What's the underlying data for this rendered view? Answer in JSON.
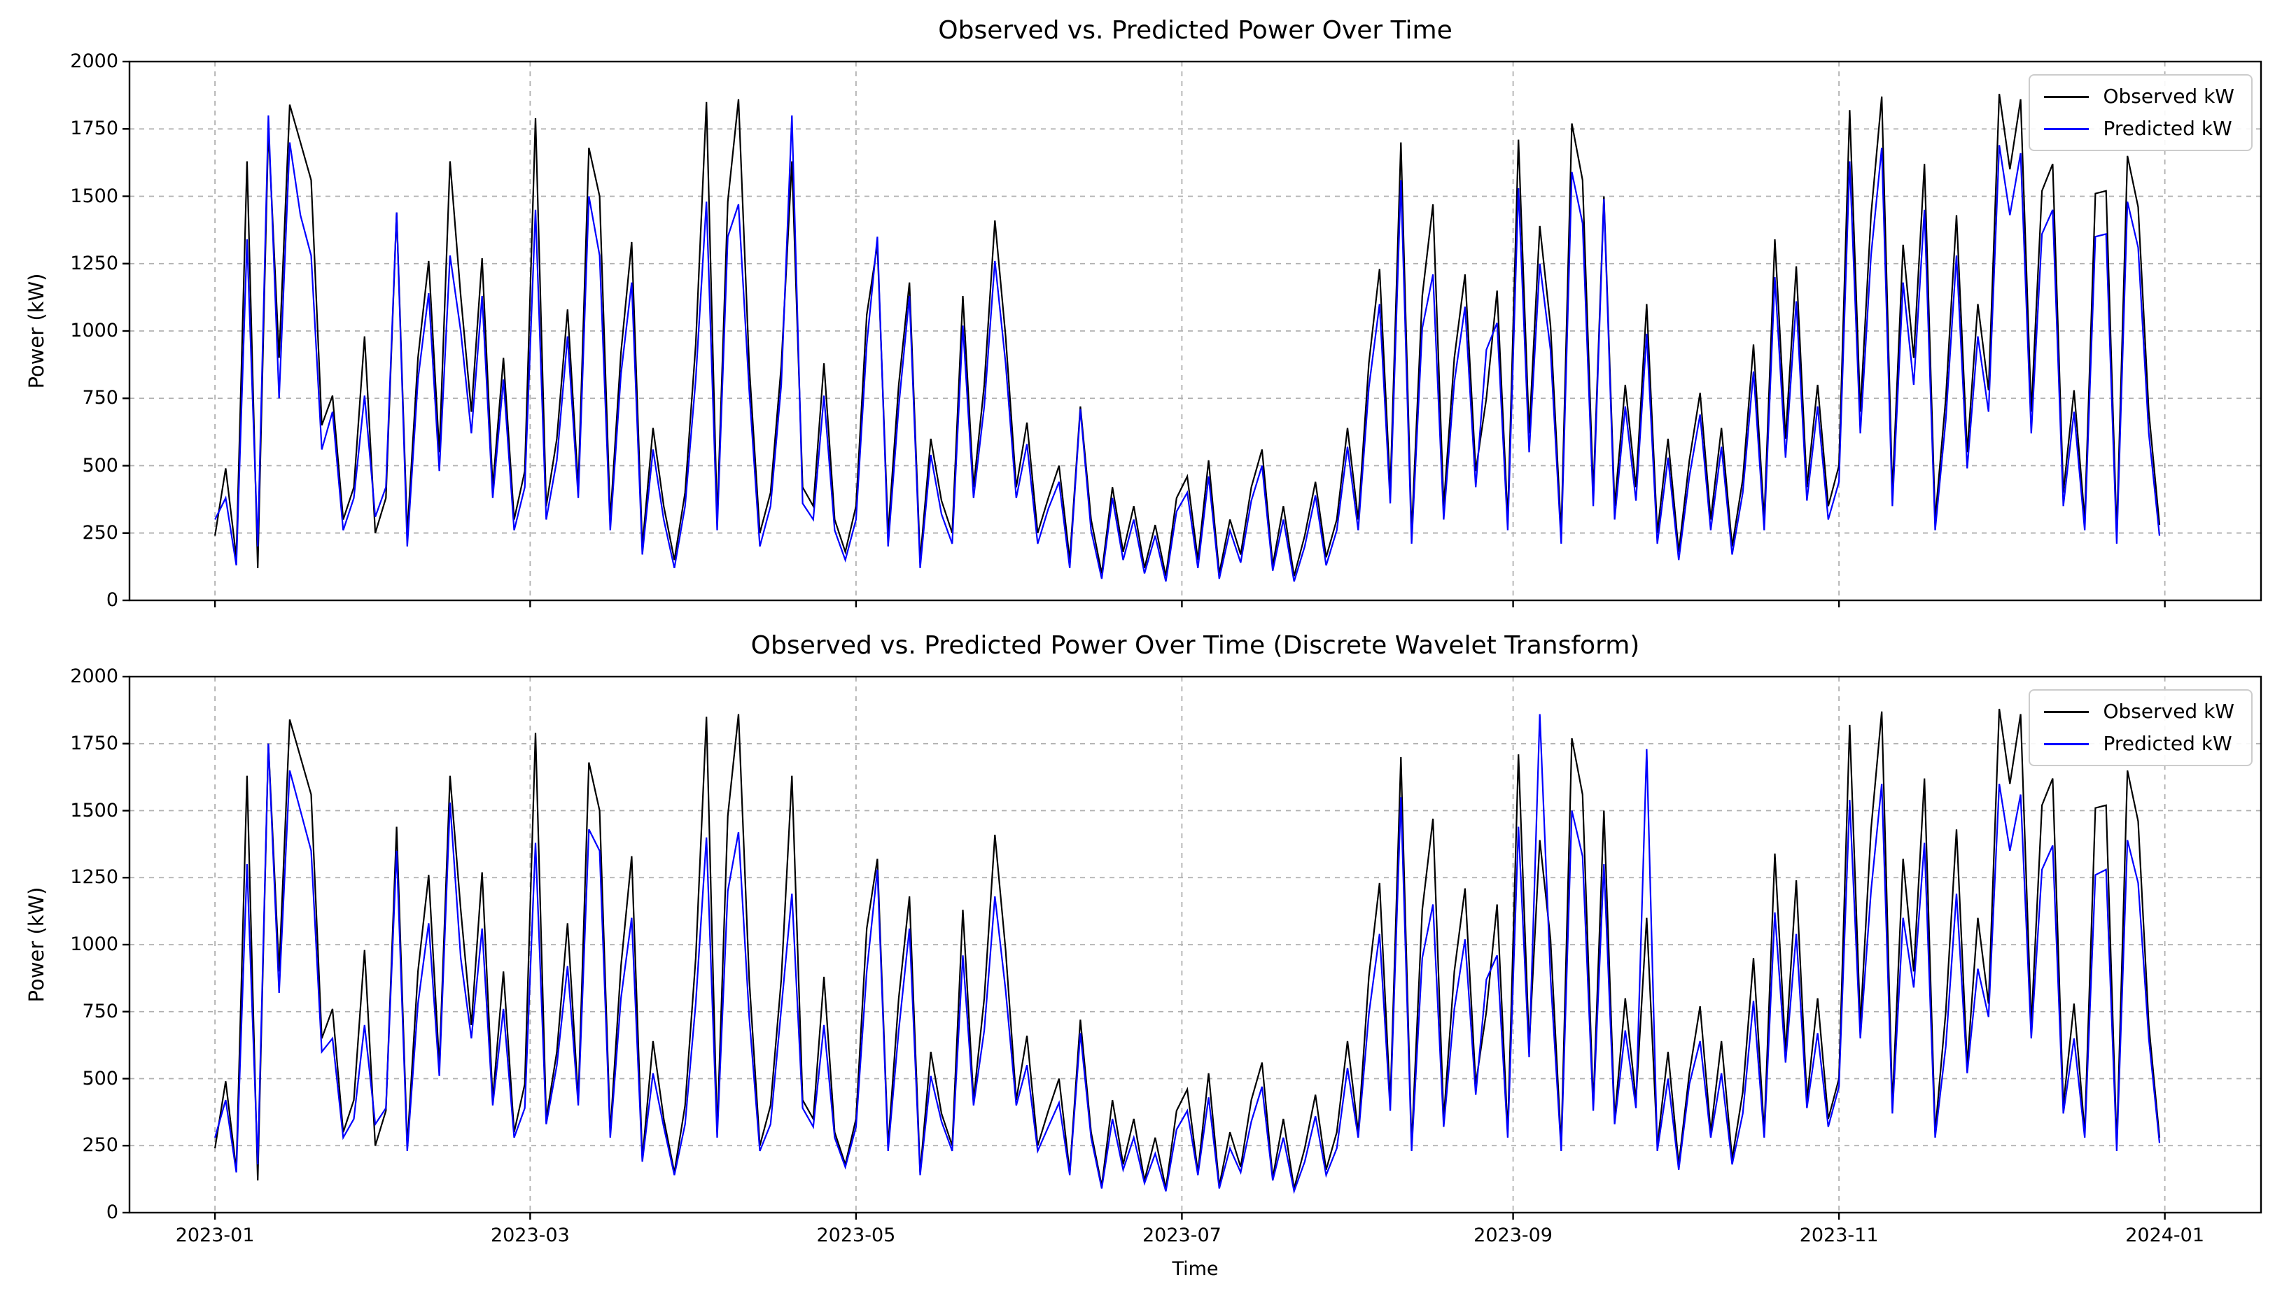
{
  "chart_data": {
    "type": "line",
    "x_start": "2023-01-01",
    "x_step_days": 2,
    "x_axis": {
      "xlim_days": [
        -16,
        383
      ],
      "tick_days": [
        0,
        59,
        120,
        181,
        243,
        304,
        365
      ],
      "tick_labels": [
        "2023-01",
        "2023-03",
        "2023-05",
        "2023-07",
        "2023-09",
        "2023-11",
        "2024-01"
      ]
    },
    "y_axis": {
      "ylim": [
        0,
        2000
      ],
      "ticks": [
        0,
        250,
        500,
        750,
        1000,
        1250,
        1500,
        1750,
        2000
      ]
    },
    "grid": true,
    "grid_style": "dashed",
    "colors": {
      "observed": "#000000",
      "predicted": "#0000ff",
      "grid": "#b0b0b0"
    },
    "values": {
      "observed": [
        240,
        490,
        160,
        1630,
        120,
        1750,
        900,
        1840,
        1700,
        1560,
        650,
        760,
        300,
        420,
        980,
        250,
        380,
        1440,
        250,
        900,
        1260,
        550,
        1630,
        1130,
        700,
        1270,
        420,
        900,
        300,
        480,
        1790,
        350,
        600,
        1080,
        420,
        1680,
        1500,
        300,
        920,
        1330,
        200,
        640,
        350,
        150,
        400,
        950,
        1850,
        300,
        1480,
        1860,
        870,
        250,
        400,
        870,
        1630,
        420,
        350,
        880,
        300,
        180,
        350,
        1060,
        1320,
        250,
        800,
        1180,
        150,
        600,
        370,
        250,
        1130,
        420,
        800,
        1410,
        980,
        420,
        660,
        250,
        380,
        500,
        150,
        720,
        300,
        100,
        420,
        180,
        350,
        120,
        280,
        90,
        380,
        460,
        150,
        520,
        100,
        300,
        170,
        420,
        560,
        130,
        350,
        90,
        240,
        440,
        160,
        300,
        640,
        300,
        880,
        1230,
        410,
        1700,
        250,
        1130,
        1470,
        350,
        900,
        1210,
        480,
        750,
        1150,
        300,
        1710,
        620,
        1390,
        1020,
        250,
        1770,
        1560,
        400,
        1500,
        350,
        800,
        420,
        1100,
        250,
        600,
        180,
        520,
        770,
        300,
        640,
        200,
        450,
        950,
        300,
        1340,
        600,
        1240,
        420,
        800,
        350,
        500,
        1820,
        700,
        1430,
        1870,
        400,
        1320,
        900,
        1620,
        300,
        750,
        1430,
        550,
        1100,
        780,
        1880,
        1600,
        1860,
        700,
        1520,
        1620,
        400,
        780,
        300,
        1510,
        1520,
        250,
        1650,
        1460,
        700,
        280
      ],
      "predicted": [
        300,
        380,
        130,
        1340,
        200,
        1800,
        750,
        1700,
        1430,
        1280,
        560,
        700,
        260,
        380,
        760,
        310,
        420,
        1440,
        200,
        820,
        1140,
        480,
        1280,
        1000,
        620,
        1130,
        380,
        820,
        260,
        420,
        1450,
        300,
        520,
        980,
        380,
        1500,
        1280,
        260,
        840,
        1180,
        170,
        560,
        300,
        120,
        350,
        820,
        1480,
        260,
        1350,
        1470,
        780,
        200,
        350,
        800,
        1800,
        360,
        300,
        760,
        260,
        150,
        300,
        950,
        1350,
        200,
        720,
        1130,
        120,
        540,
        320,
        210,
        1020,
        380,
        720,
        1260,
        880,
        380,
        580,
        210,
        340,
        440,
        120,
        710,
        260,
        80,
        380,
        150,
        300,
        100,
        240,
        70,
        330,
        400,
        120,
        460,
        80,
        260,
        140,
        370,
        500,
        110,
        300,
        70,
        200,
        390,
        130,
        260,
        570,
        260,
        790,
        1100,
        360,
        1560,
        210,
        1010,
        1210,
        300,
        810,
        1090,
        420,
        930,
        1030,
        260,
        1530,
        550,
        1250,
        930,
        210,
        1590,
        1400,
        350,
        1490,
        300,
        720,
        370,
        990,
        210,
        530,
        150,
        460,
        690,
        260,
        570,
        170,
        400,
        850,
        260,
        1200,
        530,
        1110,
        370,
        720,
        300,
        440,
        1630,
        620,
        1280,
        1680,
        350,
        1180,
        800,
        1450,
        260,
        670,
        1280,
        490,
        980,
        700,
        1690,
        1430,
        1660,
        620,
        1360,
        1450,
        350,
        700,
        260,
        1350,
        1360,
        210,
        1480,
        1310,
        620,
        240
      ],
      "predicted_dwt": [
        280,
        420,
        150,
        1300,
        180,
        1750,
        820,
        1650,
        1500,
        1350,
        600,
        650,
        280,
        350,
        700,
        330,
        390,
        1350,
        230,
        780,
        1080,
        510,
        1530,
        950,
        650,
        1060,
        400,
        760,
        280,
        390,
        1380,
        330,
        550,
        920,
        400,
        1430,
        1350,
        280,
        800,
        1100,
        190,
        520,
        320,
        140,
        330,
        780,
        1400,
        280,
        1200,
        1420,
        730,
        230,
        330,
        760,
        1190,
        390,
        320,
        700,
        280,
        170,
        320,
        900,
        1280,
        230,
        680,
        1060,
        140,
        510,
        340,
        230,
        960,
        400,
        680,
        1180,
        830,
        400,
        550,
        230,
        320,
        410,
        140,
        670,
        280,
        90,
        350,
        160,
        280,
        110,
        220,
        80,
        310,
        380,
        140,
        430,
        90,
        240,
        150,
        340,
        470,
        120,
        280,
        80,
        190,
        360,
        140,
        240,
        540,
        280,
        740,
        1040,
        380,
        1550,
        230,
        950,
        1150,
        320,
        760,
        1020,
        440,
        870,
        960,
        280,
        1440,
        580,
        1860,
        880,
        230,
        1500,
        1330,
        380,
        1300,
        330,
        680,
        390,
        1730,
        230,
        500,
        160,
        480,
        640,
        280,
        520,
        180,
        370,
        790,
        280,
        1120,
        560,
        1040,
        390,
        670,
        320,
        470,
        1540,
        650,
        1200,
        1600,
        370,
        1100,
        840,
        1380,
        280,
        620,
        1190,
        520,
        910,
        730,
        1600,
        1350,
        1560,
        650,
        1280,
        1370,
        370,
        650,
        280,
        1260,
        1280,
        230,
        1390,
        1230,
        650,
        260
      ]
    },
    "charts": [
      {
        "type": "line",
        "title": "Observed vs. Predicted Power Over Time",
        "xlabel": "",
        "ylabel": "Power (kW)",
        "legend_position": "upper right",
        "series": [
          {
            "name": "Observed kW",
            "color": "#000000",
            "values_key": "observed"
          },
          {
            "name": "Predicted kW",
            "color": "#0000ff",
            "values_key": "predicted"
          }
        ]
      },
      {
        "type": "line",
        "title": "Observed vs. Predicted Power Over Time (Discrete Wavelet Transform)",
        "xlabel": "Time",
        "ylabel": "Power (kW)",
        "legend_position": "upper right",
        "series": [
          {
            "name": "Observed kW",
            "color": "#000000",
            "values_key": "observed"
          },
          {
            "name": "Predicted kW",
            "color": "#0000ff",
            "values_key": "predicted_dwt"
          }
        ]
      }
    ]
  }
}
